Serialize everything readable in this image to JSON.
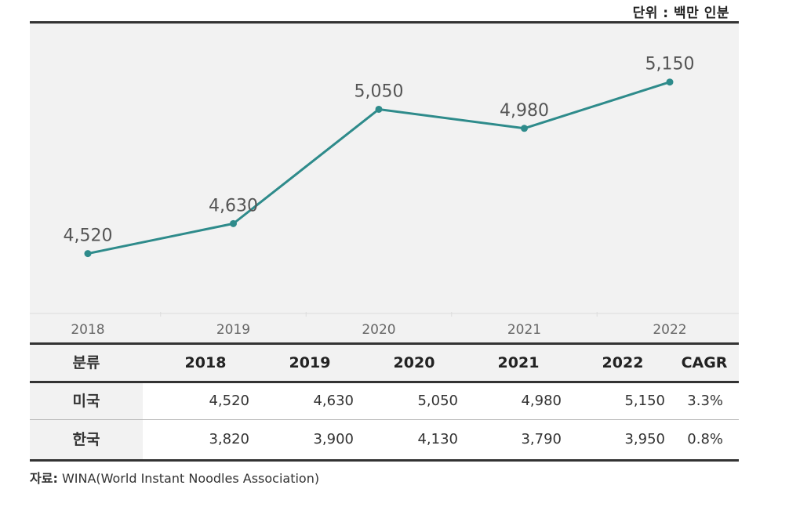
{
  "unit_label": "단위 : 백만 인분",
  "chart_data": {
    "type": "line",
    "title": "",
    "x": [
      "2018",
      "2019",
      "2020",
      "2021",
      "2022"
    ],
    "series": [
      {
        "name": "미국",
        "values": [
          4520,
          4630,
          5050,
          4980,
          5150
        ],
        "color": "#2e8b8b"
      }
    ],
    "data_labels": [
      "4,520",
      "4,630",
      "5,050",
      "4,980",
      "5,150"
    ],
    "xlabel": "",
    "ylabel": "",
    "ylim": [
      4300,
      5250
    ],
    "grid": false,
    "legend": "none"
  },
  "table": {
    "headers": [
      "분류",
      "2018",
      "2019",
      "2020",
      "2021",
      "2022",
      "CAGR"
    ],
    "rows": [
      {
        "label": "미국",
        "values": [
          "4,520",
          "4,630",
          "5,050",
          "4,980",
          "5,150"
        ],
        "cagr": "3.3%"
      },
      {
        "label": "한국",
        "values": [
          "3,820",
          "3,900",
          "4,130",
          "3,790",
          "3,950"
        ],
        "cagr": "0.8%"
      }
    ]
  },
  "source": {
    "prefix": "자료:",
    "text": "WINA(World Instant Noodles Association)"
  }
}
